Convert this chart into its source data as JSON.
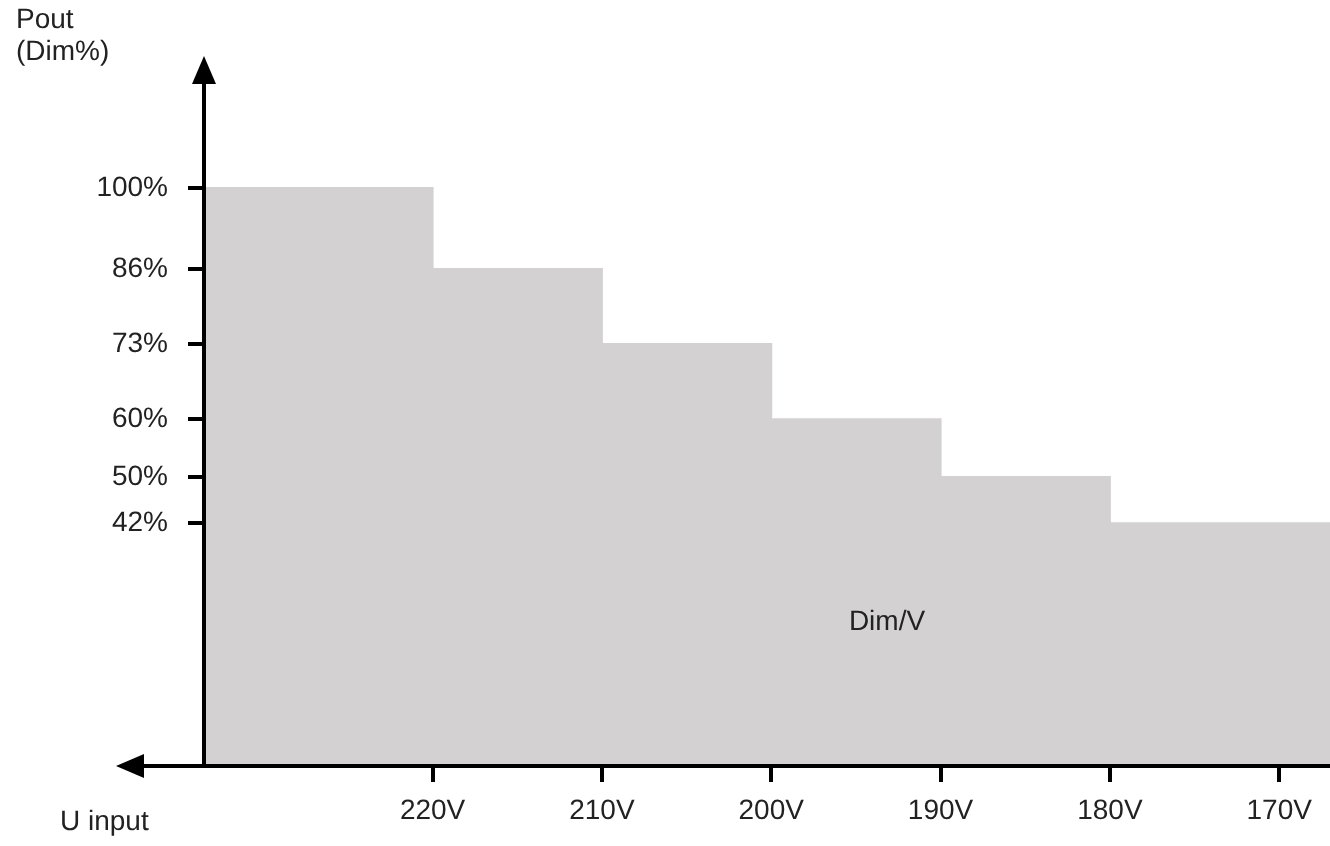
{
  "chart_data": {
    "type": "area",
    "ylabel": "Pout (Dim%)",
    "xlabel": "U input",
    "annotations": [
      "Dim/V"
    ],
    "x": [
      233.5,
      220,
      220,
      210,
      210,
      200,
      200,
      190,
      190,
      180,
      180,
      167
    ],
    "values": [
      100,
      100,
      86,
      86,
      73,
      73,
      60,
      60,
      50,
      50,
      42,
      42
    ],
    "color": "#d3d1d1",
    "xlim": [
      233.5,
      167
    ],
    "xticks": [
      {
        "value": 220,
        "label": "220V"
      },
      {
        "value": 210,
        "label": "210V"
      },
      {
        "value": 200,
        "label": "200V"
      },
      {
        "value": 190,
        "label": "190V"
      },
      {
        "value": 180,
        "label": "180V"
      },
      {
        "value": 170,
        "label": "170V"
      }
    ],
    "ylim": [
      0,
      118
    ],
    "yticks": [
      {
        "value": 42,
        "label": "42%"
      },
      {
        "value": 50,
        "label": "50%"
      },
      {
        "value": 60,
        "label": "60%"
      },
      {
        "value": 73,
        "label": "73%"
      },
      {
        "value": 86,
        "label": "86%"
      },
      {
        "value": 100,
        "label": "100%"
      }
    ],
    "grid": false,
    "legend": false
  }
}
